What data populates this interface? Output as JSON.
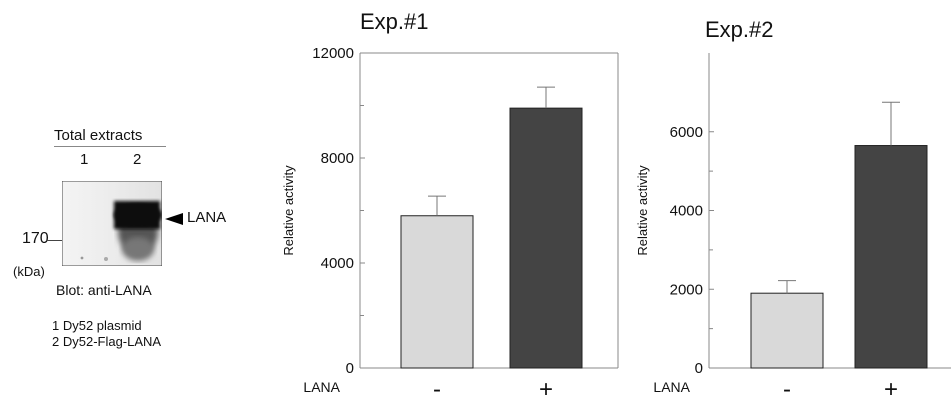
{
  "blot": {
    "header": "Total extracts",
    "lane_labels": [
      "1",
      "2"
    ],
    "band_label": "LANA",
    "marker_value": "170",
    "marker_unit": "(kDa)",
    "blot_caption": "Blot: anti-LANA",
    "legend": [
      "1 Dy52 plasmid",
      "2 Dy52-Flag-LANA"
    ]
  },
  "colors": {
    "minus_bar": "#d9d9d9",
    "plus_bar": "#444444",
    "axis": "#888888"
  },
  "chart_data": [
    {
      "type": "bar",
      "title": "Exp.#1",
      "ylabel": "Relative activity",
      "xlabel": "LANA",
      "categories": [
        "-",
        "+"
      ],
      "values": [
        5800,
        9900
      ],
      "errors": [
        750,
        800
      ],
      "ylim": [
        0,
        12000
      ],
      "yticks": [
        0,
        4000,
        8000,
        12000
      ],
      "grid": false
    },
    {
      "type": "bar",
      "title": "Exp.#2",
      "ylabel": "Relative activity",
      "xlabel": "LANA",
      "categories": [
        "-",
        "+"
      ],
      "values": [
        1900,
        5650
      ],
      "errors": [
        320,
        1100
      ],
      "ylim": [
        0,
        8000
      ],
      "yticks": [
        0,
        2000,
        4000,
        6000
      ],
      "grid": false
    }
  ]
}
